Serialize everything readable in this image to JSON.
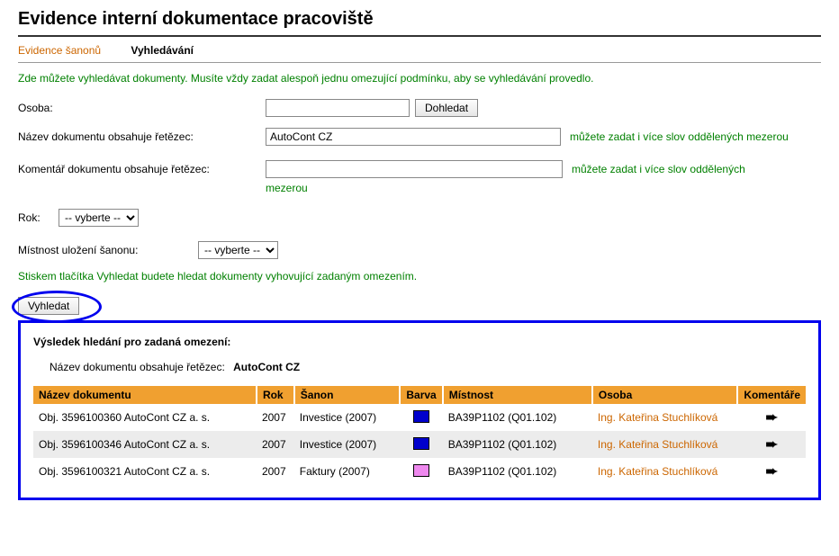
{
  "page_title": "Evidence interní dokumentace pracoviště",
  "tabs": {
    "evidence": "Evidence šanonů",
    "vyhledavani": "Vyhledávání"
  },
  "instruction_top": "Zde můžete vyhledávat dokumenty. Musíte vždy zadat alespoň jednu omezující podmínku, aby se vyhledávání provedlo.",
  "form": {
    "osoba_label": "Osoba:",
    "osoba_value": "",
    "dohledat_btn": "Dohledat",
    "nazev_label": "Název dokumentu obsahuje řetězec:",
    "nazev_value": "AutoCont CZ",
    "nazev_hint": "můžete zadat i více slov oddělených mezerou",
    "koment_label": "Komentář dokumentu obsahuje řetězec:",
    "koment_value": "",
    "koment_hint": "můžete zadat i více slov oddělených",
    "koment_hint2": "mezerou",
    "rok_label": "Rok:",
    "rok_option": "-- vyberte --",
    "mistnost_label": "Místnost uložení šanonu:",
    "mistnost_option": "-- vyberte --"
  },
  "instruction_bottom": "Stiskem tlačítka Vyhledat budete hledat dokumenty vyhovující zadaným omezením.",
  "search_btn": "Vyhledat",
  "results": {
    "title": "Výsledek hledání pro zadaná omezení:",
    "criteria_label": "Název dokumentu obsahuje řetězec:",
    "criteria_value": "AutoCont CZ",
    "headers": {
      "nazev": "Název dokumentu",
      "rok": "Rok",
      "sanon": "Šanon",
      "barva": "Barva",
      "mistnost": "Místnost",
      "osoba": "Osoba",
      "koment": "Komentáře"
    },
    "rows": [
      {
        "nazev": "Obj. 3596100360 AutoCont CZ a. s.",
        "rok": "2007",
        "sanon": "Investice (2007)",
        "barva": "#0000cc",
        "mistnost": "BA39P1102 (Q01.102)",
        "osoba": "Ing. Kateřina Stuchlíková",
        "arrow": "➨"
      },
      {
        "nazev": "Obj. 3596100346 AutoCont CZ a. s.",
        "rok": "2007",
        "sanon": "Investice (2007)",
        "barva": "#0000cc",
        "mistnost": "BA39P1102 (Q01.102)",
        "osoba": "Ing. Kateřina Stuchlíková",
        "arrow": "➨"
      },
      {
        "nazev": "Obj. 3596100321 AutoCont CZ a. s.",
        "rok": "2007",
        "sanon": "Faktury (2007)",
        "barva": "#ee88ee",
        "mistnost": "BA39P1102 (Q01.102)",
        "osoba": "Ing. Kateřina Stuchlíková",
        "arrow": "➨"
      }
    ]
  },
  "colors": {
    "accent_orange": "#cc6600",
    "header_orange": "#f0a030",
    "highlight_blue": "#0000ee",
    "green_text": "#008000",
    "row_even": "#ececec"
  }
}
